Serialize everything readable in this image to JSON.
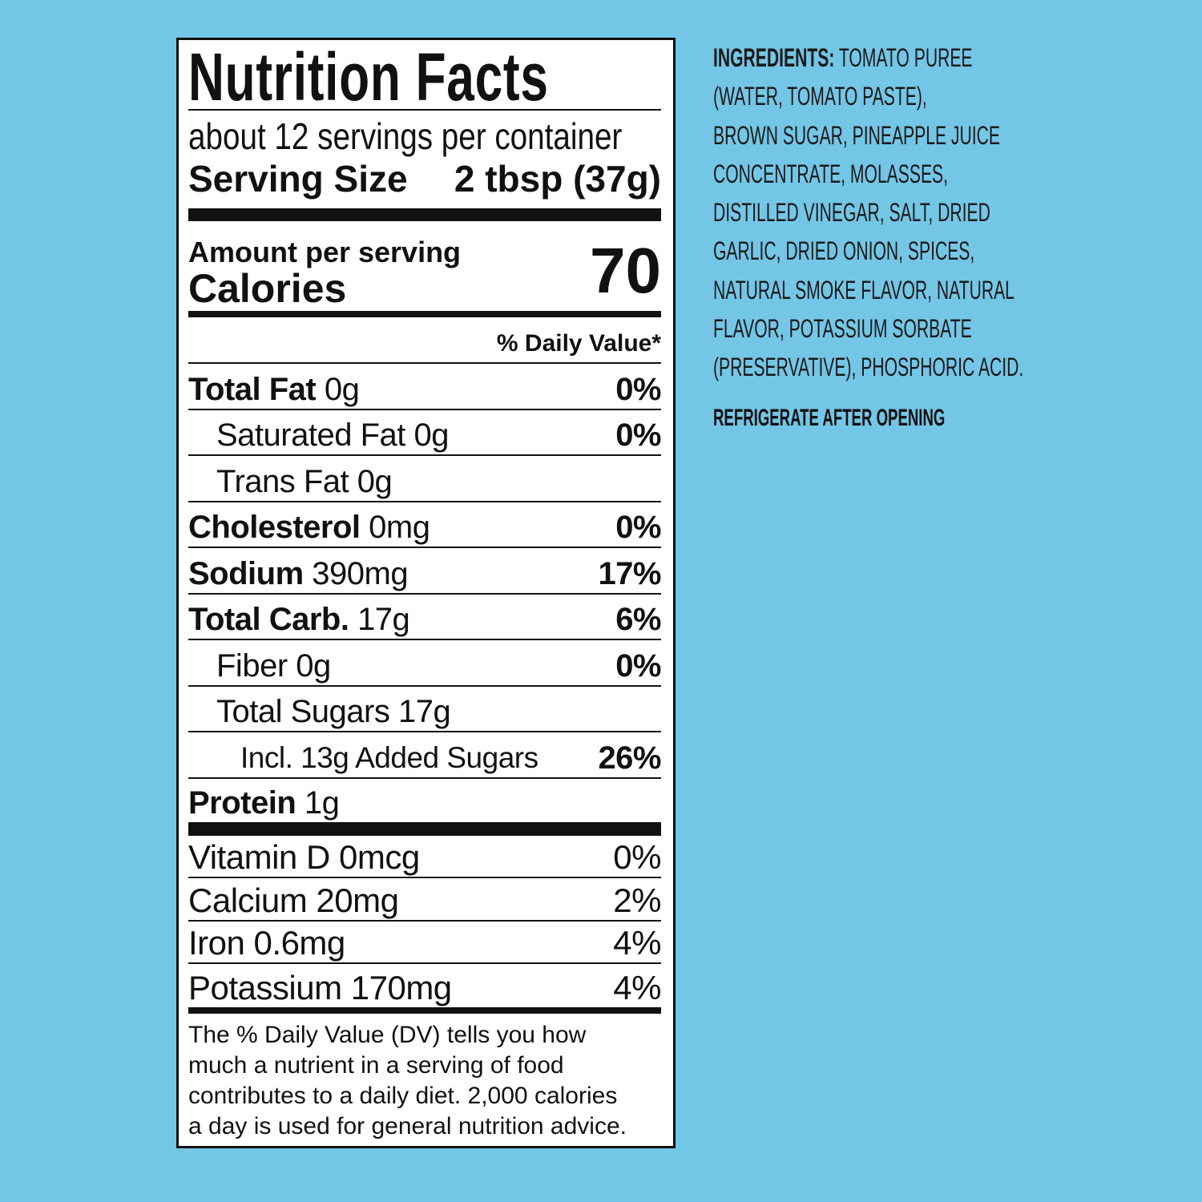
{
  "label": {
    "title": "Nutrition Facts",
    "servings": "about 12 servings per container",
    "serving_size_label": "Serving Size",
    "serving_size": "2 tbsp (37g)",
    "amount_per_serving": "Amount per serving",
    "calories_label": "Calories",
    "calories": 70,
    "daily_value_header": "% Daily Value*",
    "nutrients": [
      {
        "name": "Total Fat",
        "amount": "0g",
        "dv": "0%"
      },
      {
        "name": "Saturated Fat",
        "amount": "0g",
        "dv": "0%"
      },
      {
        "name": "Trans Fat",
        "amount": "0g"
      },
      {
        "name": "Cholesterol",
        "amount": "0mg",
        "dv": "0%"
      },
      {
        "name": "Sodium",
        "amount": "390mg",
        "dv": "17%"
      },
      {
        "name": "Total Carb.",
        "amount": "17g",
        "dv": "6%"
      },
      {
        "name": "Fiber",
        "amount": "0g",
        "dv": "0%"
      },
      {
        "name": "Total Sugars",
        "amount": "17g"
      },
      {
        "text": "Incl. 13g Added Sugars",
        "dv": "26%"
      },
      {
        "name": "Protein",
        "amount": "1g"
      }
    ],
    "vitamins": [
      {
        "name": "Vitamin D",
        "amount": "0mcg",
        "dv": "0%"
      },
      {
        "name": "Calcium",
        "amount": "20mg",
        "dv": "2%"
      },
      {
        "name": "Iron",
        "amount": "0.6mg",
        "dv": "4%"
      },
      {
        "name": "Potassium",
        "amount": "170mg",
        "dv": "4%"
      }
    ],
    "footnote": [
      "The % Daily Value (DV) tells you how",
      "much a nutrient in a serving of food",
      "contributes to a daily diet. 2,000 calories",
      "a day is used for general nutrition advice."
    ]
  },
  "ingredients": {
    "label": "INGREDIENTS:",
    "lines": [
      "TOMATO PUREE",
      "(WATER, TOMATO PASTE),",
      "BROWN SUGAR, PINEAPPLE JUICE",
      "CONCENTRATE, MOLASSES,",
      "DISTILLED VINEGAR, SALT, DRIED",
      "GARLIC, DRIED ONION, SPICES,",
      "NATURAL SMOKE FLAVOR, NATURAL",
      "FLAVOR, POTASSIUM SORBATE",
      "(PRESERVATIVE), PHOSPHORIC ACID."
    ],
    "note": "REFRIGERATE AFTER OPENING"
  }
}
